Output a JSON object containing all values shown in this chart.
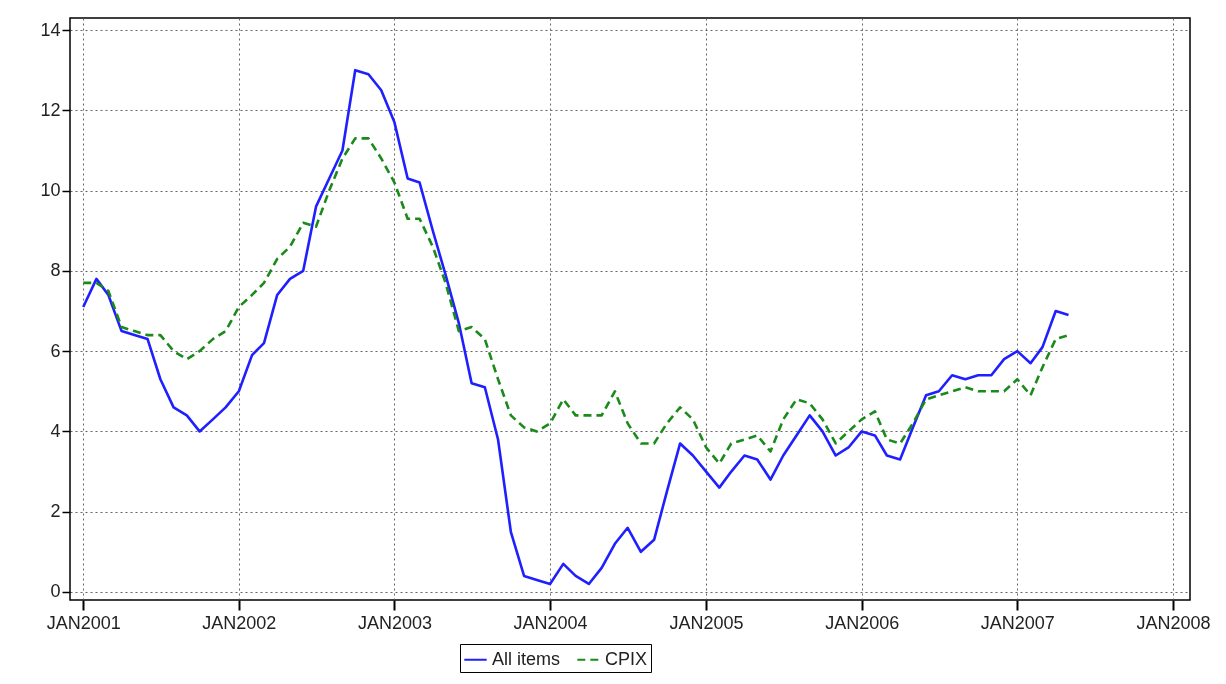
{
  "chart_data": {
    "type": "line",
    "x": [
      "2001-01",
      "2001-02",
      "2001-03",
      "2001-04",
      "2001-05",
      "2001-06",
      "2001-07",
      "2001-08",
      "2001-09",
      "2001-10",
      "2001-11",
      "2001-12",
      "2002-01",
      "2002-02",
      "2002-03",
      "2002-04",
      "2002-05",
      "2002-06",
      "2002-07",
      "2002-08",
      "2002-09",
      "2002-10",
      "2002-11",
      "2002-12",
      "2003-01",
      "2003-02",
      "2003-03",
      "2003-04",
      "2003-05",
      "2003-06",
      "2003-07",
      "2003-08",
      "2003-09",
      "2003-10",
      "2003-11",
      "2003-12",
      "2004-01",
      "2004-02",
      "2004-03",
      "2004-04",
      "2004-05",
      "2004-06",
      "2004-07",
      "2004-08",
      "2004-09",
      "2004-10",
      "2004-11",
      "2004-12",
      "2005-01",
      "2005-02",
      "2005-03",
      "2005-04",
      "2005-05",
      "2005-06",
      "2005-07",
      "2005-08",
      "2005-09",
      "2005-10",
      "2005-11",
      "2005-12",
      "2006-01",
      "2006-02",
      "2006-03",
      "2006-04",
      "2006-05",
      "2006-06",
      "2006-07",
      "2006-08",
      "2006-09",
      "2006-10",
      "2006-11",
      "2006-12",
      "2007-01",
      "2007-02",
      "2007-03",
      "2007-04",
      "2007-05"
    ],
    "series": [
      {
        "name": "All items",
        "color": "#1f1fff",
        "line_style": "solid",
        "values": [
          7.1,
          7.8,
          7.4,
          6.5,
          6.4,
          6.3,
          5.3,
          4.6,
          4.4,
          4.0,
          4.3,
          4.6,
          5.0,
          5.9,
          6.2,
          7.4,
          7.8,
          8.0,
          9.6,
          10.3,
          11.0,
          13.0,
          12.9,
          12.5,
          11.7,
          10.3,
          10.2,
          9.0,
          7.9,
          6.7,
          5.2,
          5.1,
          3.8,
          1.5,
          0.4,
          0.3,
          0.2,
          0.7,
          0.4,
          0.2,
          0.6,
          1.2,
          1.6,
          1.0,
          1.3,
          2.5,
          3.7,
          3.4,
          3.0,
          2.6,
          3.0,
          3.4,
          3.3,
          2.8,
          3.4,
          3.9,
          4.4,
          4.0,
          3.4,
          3.6,
          4.0,
          3.9,
          3.4,
          3.3,
          4.1,
          4.9,
          5.0,
          5.4,
          5.3,
          5.4,
          5.4,
          5.8,
          6.0,
          5.7,
          6.1,
          7.0,
          6.9
        ]
      },
      {
        "name": "CPIX",
        "color": "#1a8a1a",
        "line_style": "dashed",
        "values": [
          7.7,
          7.7,
          7.5,
          6.6,
          6.5,
          6.4,
          6.4,
          6.0,
          5.8,
          6.0,
          6.3,
          6.5,
          7.1,
          7.4,
          7.7,
          8.3,
          8.6,
          9.2,
          9.1,
          10.0,
          10.8,
          11.3,
          11.3,
          10.8,
          10.2,
          9.3,
          9.3,
          8.6,
          7.7,
          6.5,
          6.6,
          6.3,
          5.3,
          4.4,
          4.1,
          4.0,
          4.2,
          4.8,
          4.4,
          4.4,
          4.4,
          5.0,
          4.2,
          3.7,
          3.7,
          4.2,
          4.6,
          4.3,
          3.6,
          3.2,
          3.7,
          3.8,
          3.9,
          3.5,
          4.3,
          4.8,
          4.7,
          4.3,
          3.7,
          4.0,
          4.3,
          4.5,
          3.8,
          3.7,
          4.2,
          4.8,
          4.9,
          5.0,
          5.1,
          5.0,
          5.0,
          5.0,
          5.3,
          4.9,
          5.6,
          6.3,
          6.4
        ]
      }
    ],
    "xlim": [
      "2000-12-01",
      "2008-02-10"
    ],
    "xticks": [
      {
        "value": "2001-01-01",
        "label": "JAN2001"
      },
      {
        "value": "2002-01-01",
        "label": "JAN2002"
      },
      {
        "value": "2003-01-01",
        "label": "JAN2003"
      },
      {
        "value": "2004-01-01",
        "label": "JAN2004"
      },
      {
        "value": "2005-01-01",
        "label": "JAN2005"
      },
      {
        "value": "2006-01-01",
        "label": "JAN2006"
      },
      {
        "value": "2007-01-01",
        "label": "JAN2007"
      },
      {
        "value": "2008-01-01",
        "label": "JAN2008"
      }
    ],
    "ylim": [
      -0.2,
      14.3
    ],
    "yticks": [
      0,
      2,
      4,
      6,
      8,
      10,
      12,
      14
    ],
    "grid": true,
    "legend": "bottom"
  }
}
